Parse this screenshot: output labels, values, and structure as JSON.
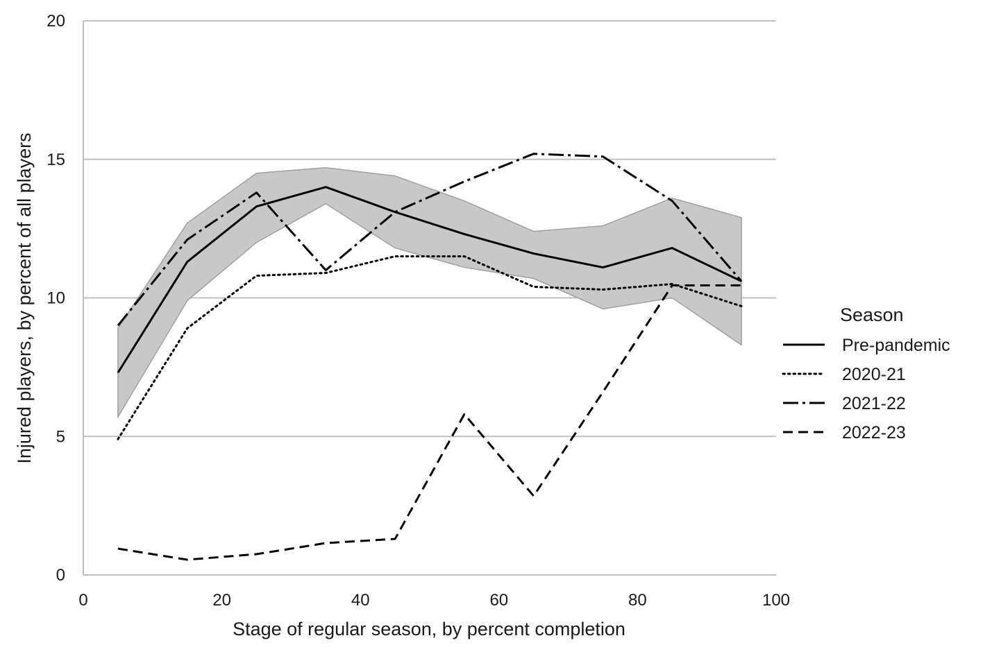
{
  "chart_data": {
    "type": "line",
    "title": "",
    "xlabel": "Stage of regular season, by percent completion",
    "ylabel": "Injured players, by percent of all players",
    "xlim": [
      0,
      100
    ],
    "ylim": [
      0,
      20
    ],
    "xticks": [
      0,
      20,
      40,
      60,
      80,
      100
    ],
    "yticks": [
      0,
      5,
      10,
      15,
      20
    ],
    "grid": "horizontal",
    "x": [
      5,
      15,
      25,
      35,
      45,
      55,
      65,
      75,
      85,
      95
    ],
    "series": [
      {
        "name": "Pre-pandemic",
        "style": "solid",
        "values": [
          7.3,
          11.3,
          13.3,
          14.0,
          13.1,
          12.3,
          11.6,
          11.1,
          11.8,
          10.6
        ]
      },
      {
        "name": "2020-21",
        "style": "dotted",
        "values": [
          4.9,
          8.9,
          10.8,
          10.9,
          11.5,
          11.5,
          10.4,
          10.3,
          10.5,
          9.7
        ]
      },
      {
        "name": "2021-22",
        "style": "dashdot",
        "values": [
          9.0,
          12.1,
          13.8,
          11.0,
          13.1,
          14.2,
          15.2,
          15.1,
          13.5,
          10.6
        ]
      },
      {
        "name": "2022-23",
        "style": "dashed",
        "values": [
          0.95,
          0.55,
          0.75,
          1.15,
          1.3,
          5.8,
          2.85,
          6.6,
          10.45,
          10.45
        ]
      }
    ],
    "band": {
      "series": "Pre-pandemic",
      "lower": [
        5.7,
        9.9,
        12.0,
        13.4,
        11.8,
        11.1,
        10.7,
        9.6,
        10.0,
        8.3
      ],
      "upper": [
        8.9,
        12.7,
        14.5,
        14.7,
        14.4,
        13.5,
        12.4,
        12.6,
        13.6,
        12.9
      ],
      "color": "#c8c8c8",
      "edge_color": "#a0a0a0"
    },
    "legend": {
      "title": "Season",
      "position": "right"
    },
    "colors": {
      "line": "#000000",
      "grid": "#c0c0c0",
      "axis": "#bdbdbd"
    }
  }
}
